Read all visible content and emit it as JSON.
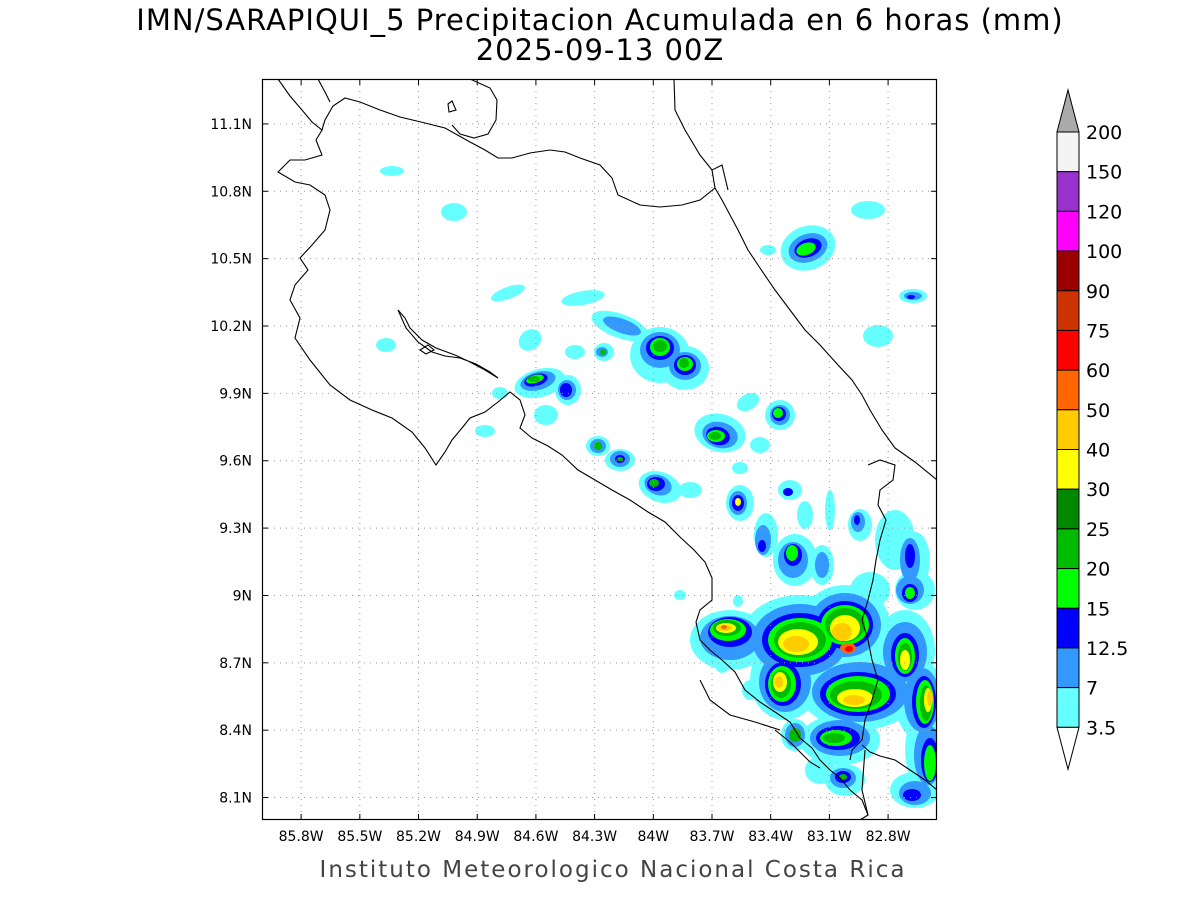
{
  "header": {
    "title_line1": "IMN/SARAPIQUI_5 Precipitacion Acumulada en 6 horas (mm)",
    "title_line2": "2025-09-13 00Z"
  },
  "footer": {
    "credit": "Instituto Meteorologico Nacional Costa Rica"
  },
  "map": {
    "lon_range": [
      -86.0,
      -82.55
    ],
    "lat_range": [
      8.0,
      11.3
    ],
    "lon_ticks": [
      {
        "value": -85.8,
        "label": "85.8W"
      },
      {
        "value": -85.5,
        "label": "85.5W"
      },
      {
        "value": -85.2,
        "label": "85.2W"
      },
      {
        "value": -84.9,
        "label": "84.9W"
      },
      {
        "value": -84.6,
        "label": "84.6W"
      },
      {
        "value": -84.3,
        "label": "84.3W"
      },
      {
        "value": -84.0,
        "label": "84W"
      },
      {
        "value": -83.7,
        "label": "83.7W"
      },
      {
        "value": -83.4,
        "label": "83.4W"
      },
      {
        "value": -83.1,
        "label": "83.1W"
      },
      {
        "value": -82.8,
        "label": "82.8W"
      }
    ],
    "lat_ticks": [
      {
        "value": 11.1,
        "label": "11.1N"
      },
      {
        "value": 10.8,
        "label": "10.8N"
      },
      {
        "value": 10.5,
        "label": "10.5N"
      },
      {
        "value": 10.2,
        "label": "10.2N"
      },
      {
        "value": 9.9,
        "label": "9.9N"
      },
      {
        "value": 9.6,
        "label": "9.6N"
      },
      {
        "value": 9.3,
        "label": "9.3N"
      },
      {
        "value": 9.0,
        "label": "9N"
      },
      {
        "value": 8.7,
        "label": "8.7N"
      },
      {
        "value": 8.4,
        "label": "8.4N"
      },
      {
        "value": 8.1,
        "label": "8.1N"
      }
    ],
    "grid": true
  },
  "colorbar": {
    "levels": [
      {
        "label": "200",
        "color": "#f4f4f4"
      },
      {
        "label": "150",
        "color": "#9932cc"
      },
      {
        "label": "120",
        "color": "#ff00ff"
      },
      {
        "label": "100",
        "color": "#990000"
      },
      {
        "label": "90",
        "color": "#cc3300"
      },
      {
        "label": "75",
        "color": "#ff0000"
      },
      {
        "label": "60",
        "color": "#ff6600"
      },
      {
        "label": "50",
        "color": "#ffcc00"
      },
      {
        "label": "40",
        "color": "#ffff00"
      },
      {
        "label": "30",
        "color": "#008800"
      },
      {
        "label": "25",
        "color": "#00bb00"
      },
      {
        "label": "20",
        "color": "#00ff00"
      },
      {
        "label": "15",
        "color": "#0000ff"
      },
      {
        "label": "12.5",
        "color": "#3399ff"
      },
      {
        "label": "7",
        "color": "#66ffff"
      },
      {
        "label": "3.5",
        "color": "#ffffff"
      }
    ],
    "top_cap_color": "#aaaaaa"
  }
}
